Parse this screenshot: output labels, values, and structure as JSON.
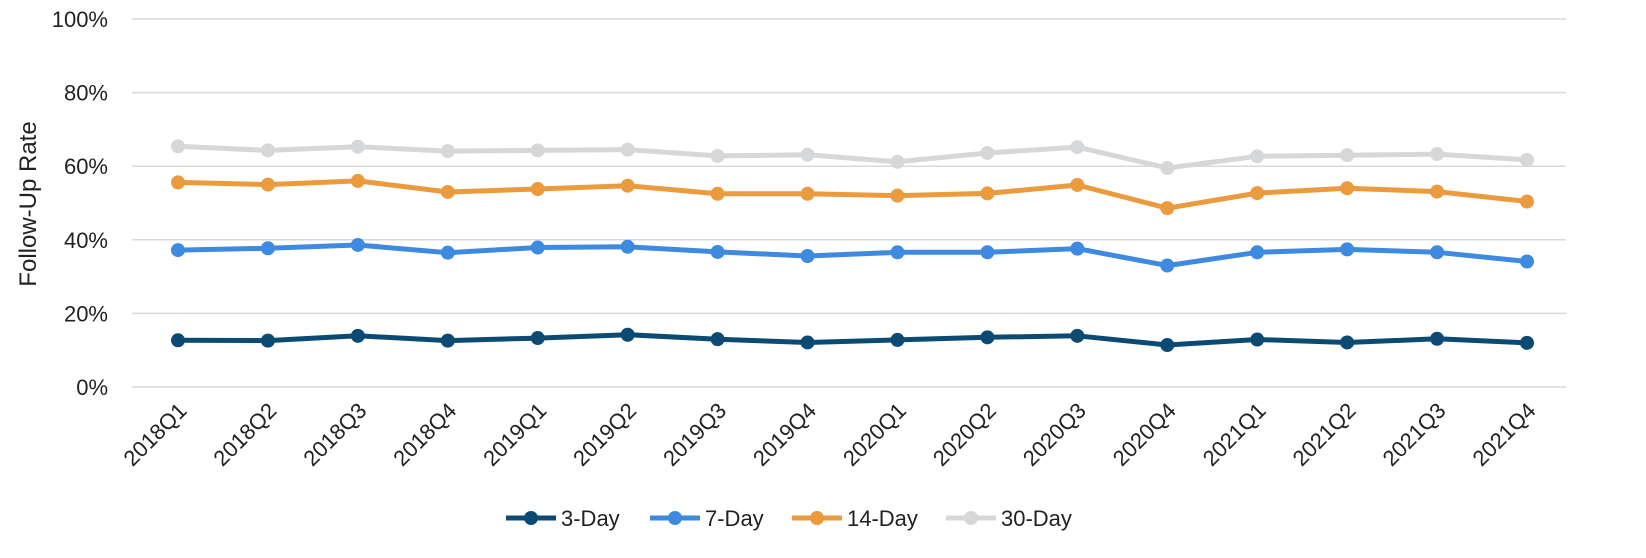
{
  "chart_data": {
    "type": "line",
    "title": "",
    "xlabel": "",
    "ylabel": "Follow-Up Rate",
    "ylim": [
      0,
      100
    ],
    "yticks": [
      "0%",
      "20%",
      "40%",
      "60%",
      "80%",
      "100%"
    ],
    "ytick_values": [
      0,
      20,
      40,
      60,
      80,
      100
    ],
    "grid": true,
    "legend_position": "bottom",
    "categories": [
      "2018Q1",
      "2018Q2",
      "2018Q3",
      "2018Q4",
      "2019Q1",
      "2019Q2",
      "2019Q3",
      "2019Q4",
      "2020Q1",
      "2020Q2",
      "2020Q3",
      "2020Q4",
      "2021Q1",
      "2021Q2",
      "2021Q3",
      "2021Q4"
    ],
    "series": [
      {
        "name": "3-Day",
        "color": "#0b4a73",
        "values": [
          12.7,
          12.6,
          13.9,
          12.6,
          13.3,
          14.2,
          13.0,
          12.1,
          12.8,
          13.5,
          13.9,
          11.4,
          12.9,
          12.1,
          13.1,
          12.0
        ]
      },
      {
        "name": "7-Day",
        "color": "#3e8ae0",
        "values": [
          37.2,
          37.7,
          38.6,
          36.5,
          37.9,
          38.1,
          36.7,
          35.6,
          36.6,
          36.6,
          37.6,
          33.0,
          36.6,
          37.4,
          36.6,
          34.1
        ]
      },
      {
        "name": "14-Day",
        "color": "#eb9b3d",
        "values": [
          55.6,
          55.0,
          56.0,
          53.0,
          53.8,
          54.7,
          52.5,
          52.5,
          52.0,
          52.6,
          54.9,
          48.6,
          52.7,
          54.0,
          53.1,
          50.4
        ]
      },
      {
        "name": "30-Day",
        "color": "#d6d7d9",
        "values": [
          65.4,
          64.3,
          65.3,
          64.1,
          64.3,
          64.5,
          62.8,
          63.1,
          61.2,
          63.6,
          65.2,
          59.5,
          62.7,
          63.0,
          63.3,
          61.7
        ]
      }
    ]
  }
}
